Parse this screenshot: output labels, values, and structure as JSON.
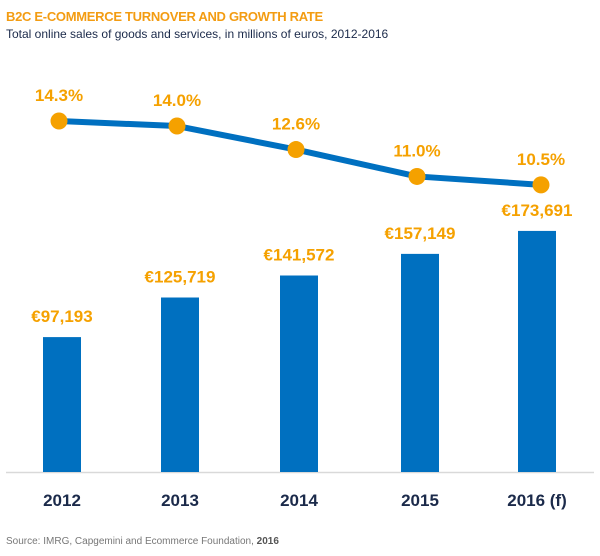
{
  "chart_data": {
    "type": "bar+line",
    "title": "B2C E-COMMERCE TURNOVER AND GROWTH RATE",
    "subtitle": "Total online sales of goods and services, in millions of euros, 2012-2016",
    "categories": [
      "2012",
      "2013",
      "2014",
      "2015",
      "2016 (f)"
    ],
    "bar_values": [
      97193,
      125719,
      141572,
      157149,
      173691
    ],
    "bar_labels": [
      "€97,193",
      "€125,719",
      "€141,572",
      "€157,149",
      "€173,691"
    ],
    "line_values": [
      14.3,
      14.0,
      12.6,
      11.0,
      10.5
    ],
    "line_labels": [
      "14.3%",
      "14.0%",
      "12.6%",
      "11.0%",
      "10.5%"
    ],
    "grid": false,
    "legend": "none",
    "colors": {
      "bar": "#0070c0",
      "line": "#0070c0",
      "marker": "#f5a100",
      "label": "#f5a100",
      "title": "#f39c12",
      "axis_text": "#1b2a4a"
    }
  },
  "source": {
    "text": "Source: IMRG, Capgemini and Ecommerce Foundation, ",
    "year": "2016"
  }
}
